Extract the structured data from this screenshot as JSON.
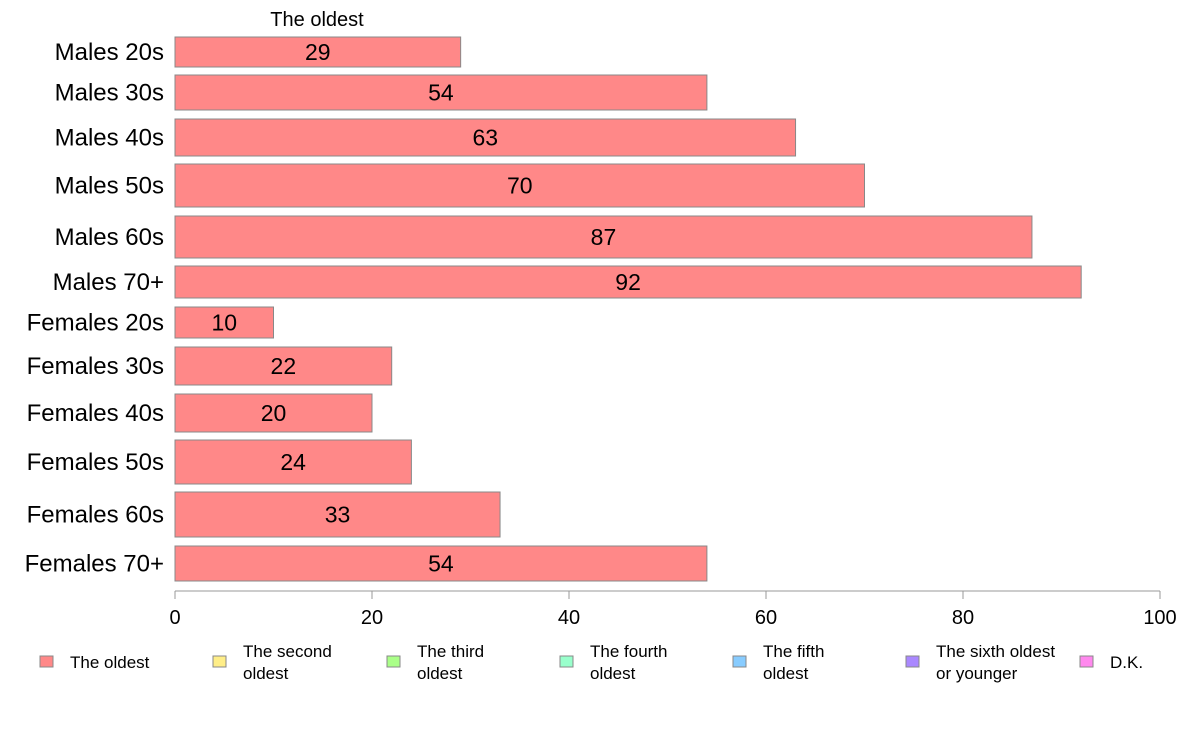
{
  "chart_data": {
    "type": "bar",
    "orientation": "horizontal",
    "stacked": true,
    "series_header_label": "The oldest",
    "categories": [
      "Males 20s",
      "Males 30s",
      "Males 40s",
      "Males 50s",
      "Males 60s",
      "Males 70+",
      "Females 20s",
      "Females 30s",
      "Females 40s",
      "Females 50s",
      "Females 60s",
      "Females 70+"
    ],
    "series": [
      {
        "name": "The oldest",
        "color": "#ff8888",
        "values": [
          29,
          54,
          63,
          70,
          87,
          92,
          10,
          22,
          20,
          24,
          33,
          54
        ]
      }
    ],
    "xlim": [
      0,
      100
    ],
    "xticks": [
      0,
      20,
      40,
      60,
      80,
      100
    ],
    "grid": false,
    "legend_position": "bottom",
    "legend": [
      {
        "lines": [
          "The oldest"
        ],
        "color": "#ff8888"
      },
      {
        "lines": [
          "The second",
          "oldest"
        ],
        "color": "#ffee88"
      },
      {
        "lines": [
          "The third",
          "oldest"
        ],
        "color": "#aaff88"
      },
      {
        "lines": [
          "The fourth",
          "oldest"
        ],
        "color": "#99ffcc"
      },
      {
        "lines": [
          "The fifth",
          "oldest"
        ],
        "color": "#88ccff"
      },
      {
        "lines": [
          "The sixth oldest",
          "or younger"
        ],
        "color": "#aa88ff"
      },
      {
        "lines": [
          "D.K."
        ],
        "color": "#ff88ee"
      }
    ]
  }
}
